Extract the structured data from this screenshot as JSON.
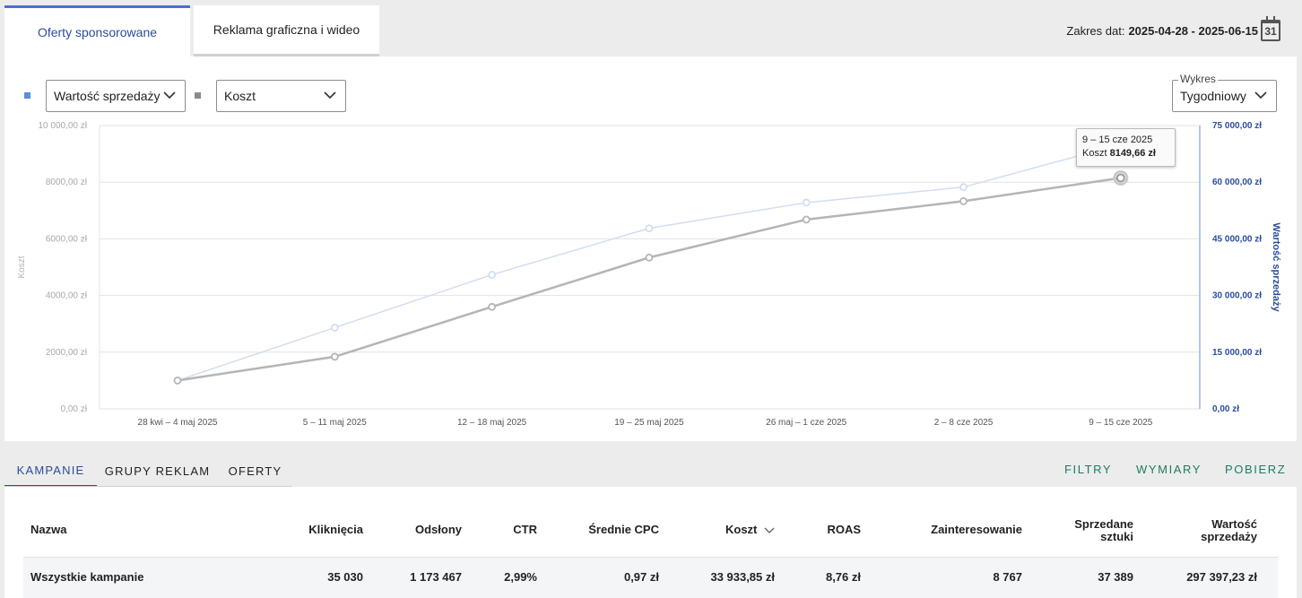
{
  "tabs": {
    "sponsored": "Oferty sponsorowane",
    "display": "Reklama graficzna i wideo"
  },
  "date_range": {
    "label": "Zakres dat:",
    "value": "2025-04-28 - 2025-06-15",
    "calendar_day": "31"
  },
  "controls": {
    "metric1": "Wartość sprzedaży",
    "metric2": "Koszt",
    "chart_label": "Wykres",
    "chart_value": "Tygodniowy"
  },
  "colors": {
    "metric1": "#5b8fd6",
    "metric2": "#8a8a8a",
    "accent": "#2a4d9b",
    "action": "#1f7a66"
  },
  "chart_data": {
    "type": "line",
    "categories": [
      "28 kwi – 4 maj 2025",
      "5 – 11 maj 2025",
      "12 – 18 maj 2025",
      "19 – 25 maj 2025",
      "26 maj – 1 cze 2025",
      "2 – 8 cze 2025",
      "9 – 15 cze 2025"
    ],
    "series": [
      {
        "name": "Koszt",
        "axis": "left",
        "color": "#b5b5b5",
        "values": [
          1000,
          1840,
          3600,
          5340,
          6680,
          7330,
          8149.66
        ]
      },
      {
        "name": "Wartość sprzedaży",
        "axis": "right",
        "color": "#d3ddf0",
        "values": [
          7500,
          21500,
          35500,
          47800,
          54600,
          58700,
          70000
        ]
      }
    ],
    "ylabel_left": "Koszt",
    "ylabel_right": "Wartość sprzedaży",
    "ylim_left": [
      0,
      10000
    ],
    "ylim_right": [
      0,
      75000
    ],
    "yticks_left": [
      "0,00 zł",
      "2000,00 zł",
      "4000,00 zł",
      "6000,00 zł",
      "8000,00 zł",
      "10 000,00 zł"
    ],
    "yticks_right": [
      "0,00 zł",
      "15 000,00 zł",
      "30 000,00 zł",
      "45 000,00 zł",
      "60 000,00 zł",
      "75 000,00 zł"
    ],
    "grid": true,
    "tooltip": {
      "title": "9 – 15 cze 2025",
      "label": "Koszt",
      "value": "8149,66 zł"
    }
  },
  "bottom_tabs": [
    "KAMPANIE",
    "GRUPY REKLAM",
    "OFERTY"
  ],
  "actions": [
    "FILTRY",
    "WYMIARY",
    "POBIERZ"
  ],
  "table": {
    "headers": {
      "name": "Nazwa",
      "clicks": "Kliknięcia",
      "impressions": "Odsłony",
      "ctr": "CTR",
      "cpc": "Średnie CPC",
      "cost": "Koszt",
      "roas": "ROAS",
      "interest": "Zainteresowanie",
      "units_1": "Sprzedane",
      "units_2": "sztuki",
      "value_1": "Wartość",
      "value_2": "sprzedaży"
    },
    "total_row": {
      "name": "Wszystkie kampanie",
      "clicks": "35 030",
      "impressions": "1 173 467",
      "ctr": "2,99%",
      "cpc": "0,97 zł",
      "cost": "33 933,85 zł",
      "roas": "8,76 zł",
      "interest": "8 767",
      "units": "37 389",
      "value": "297 397,23 zł"
    }
  }
}
